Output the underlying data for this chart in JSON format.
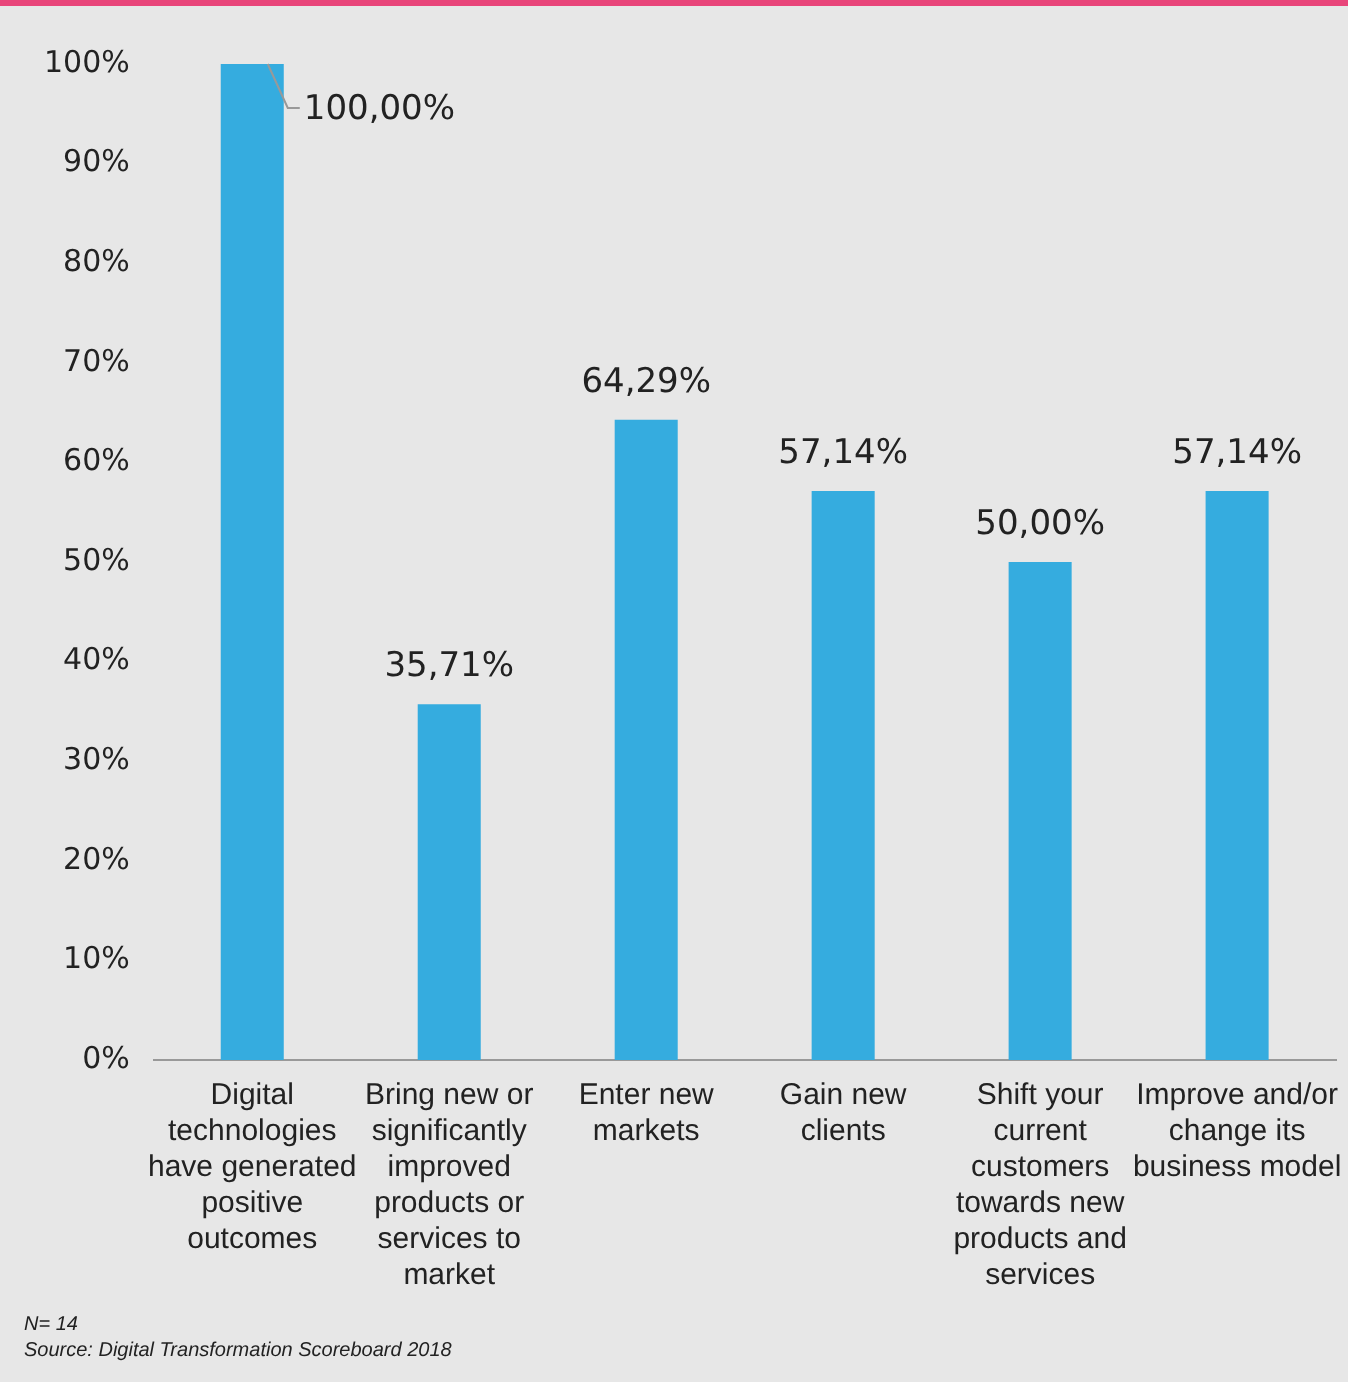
{
  "chart_data": {
    "type": "bar",
    "categories": [
      "Digital technologies have generated positive outcomes",
      "Bring new or significantly improved products or services to market",
      "Enter new markets",
      "Gain new clients",
      "Shift your current customers towards new products and services",
      "Improve and/or change its business model"
    ],
    "values": [
      100,
      35.71,
      64.29,
      57.14,
      50,
      57.14
    ],
    "color": "#35acdf",
    "value_labels": [
      "100,00%",
      "35,71%",
      "64,29%",
      "57,14%",
      "50,00%",
      "57,14%"
    ],
    "ylim": [
      0,
      100
    ],
    "yticks": [
      {
        "value": 0,
        "label": "0%"
      },
      {
        "value": 10,
        "label": "10%"
      },
      {
        "value": 20,
        "label": "20%"
      },
      {
        "value": 30,
        "label": "30%"
      },
      {
        "value": 40,
        "label": "40%"
      },
      {
        "value": 50,
        "label": "50%"
      },
      {
        "value": 60,
        "label": "60%"
      },
      {
        "value": 70,
        "label": "70%"
      },
      {
        "value": 80,
        "label": "80%"
      },
      {
        "value": 90,
        "label": "90%"
      },
      {
        "value": 100,
        "label": "100%"
      }
    ],
    "grid": false,
    "legend": false,
    "annotations": [
      "N= 14",
      "Source: Digital Transformation Scoreboard 2018"
    ]
  }
}
